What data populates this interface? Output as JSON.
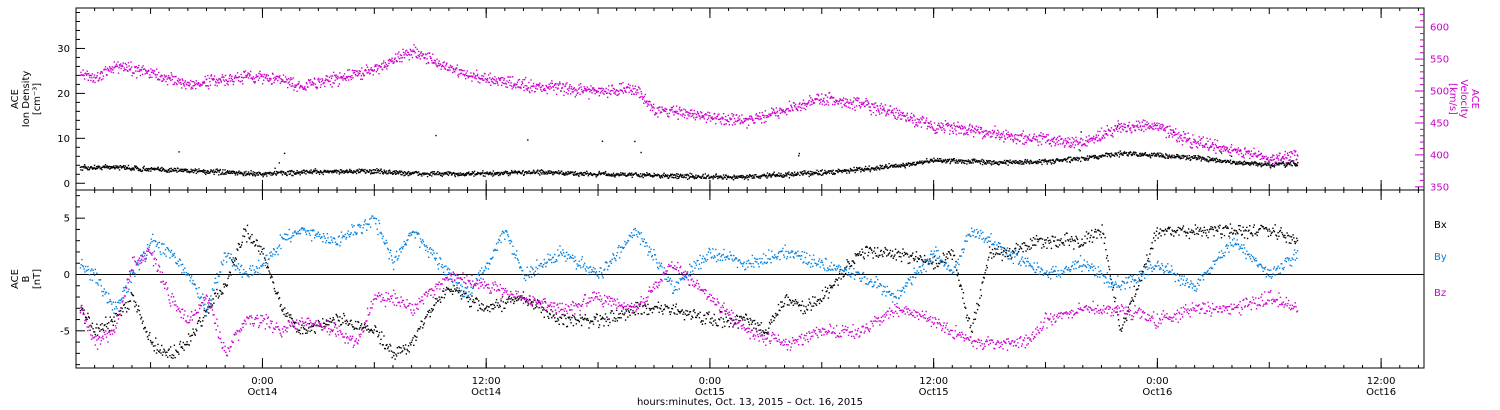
{
  "figure": {
    "x_caption": "hours:minutes, Oct. 13, 2015 – Oct. 16, 2015",
    "x_ticks": [
      {
        "hour": 24,
        "time": "0:00",
        "day": "Oct14"
      },
      {
        "hour": 36,
        "time": "12:00",
        "day": "Oct14"
      },
      {
        "hour": 48,
        "time": "0:00",
        "day": "Oct15"
      },
      {
        "hour": 60,
        "time": "12:00",
        "day": "Oct15"
      },
      {
        "hour": 72,
        "time": "0:00",
        "day": "Oct16"
      },
      {
        "hour": 84,
        "time": "12:00",
        "day": "Oct16"
      }
    ],
    "xlim_hours_from_oct13_0000": [
      14,
      86.3
    ]
  },
  "colors": {
    "black": "#000000",
    "magenta": "#cc00cc",
    "blue": "#0080e0"
  },
  "chart_data": [
    {
      "type": "scatter",
      "panel": "top",
      "ylabel_left": [
        "ACE",
        "Ion Density",
        "[cm⁻³]"
      ],
      "ylabel_right": [
        "ACE",
        "Velocity",
        "[km/s]"
      ],
      "ylim_left": [
        -1.5,
        39
      ],
      "ylim_right": [
        345,
        630
      ],
      "yticks_left": [
        0,
        10,
        20,
        30
      ],
      "yticks_right": [
        350,
        400,
        450,
        500,
        550,
        600
      ],
      "series": [
        {
          "color": "black",
          "axis": "left",
          "x": [
            14.2,
            16,
            18,
            20,
            22,
            24,
            26,
            28,
            30,
            32,
            34,
            36,
            38,
            40,
            42,
            44,
            46,
            48,
            50,
            52,
            54,
            56,
            58,
            60,
            62,
            64,
            66,
            68,
            70,
            72,
            74,
            76,
            78,
            79.5
          ],
          "y": [
            3.5,
            3.8,
            3.2,
            3.0,
            2.5,
            2.2,
            2.6,
            2.8,
            2.8,
            2.3,
            2.2,
            2.2,
            2.6,
            2.4,
            2.2,
            2.0,
            1.8,
            1.5,
            1.6,
            2.0,
            2.5,
            3.2,
            4.0,
            5.2,
            5.0,
            4.8,
            5.0,
            5.6,
            6.8,
            6.4,
            5.8,
            4.8,
            4.2,
            4.5
          ]
        },
        {
          "color": "magenta",
          "axis": "right",
          "x": [
            14.2,
            15,
            16,
            18,
            20,
            22,
            24,
            26,
            28,
            30,
            31,
            32,
            34,
            35,
            36,
            38,
            40,
            42,
            44,
            45,
            46,
            48,
            50,
            52,
            54,
            56,
            58,
            60,
            62,
            64,
            66,
            68,
            70,
            72,
            74,
            76,
            78,
            79.5
          ],
          "y": [
            530,
            520,
            540,
            530,
            510,
            520,
            525,
            510,
            520,
            535,
            550,
            565,
            535,
            525,
            520,
            510,
            505,
            500,
            505,
            470,
            470,
            460,
            455,
            470,
            490,
            480,
            465,
            445,
            440,
            430,
            425,
            420,
            445,
            445,
            420,
            410,
            395,
            400
          ]
        }
      ]
    },
    {
      "type": "scatter",
      "panel": "bottom",
      "ylabel_left": [
        "ACE",
        "B",
        "[nT]"
      ],
      "ylim": [
        -8.3,
        7.5
      ],
      "yticks": [
        -5,
        0,
        5
      ],
      "legend": [
        "Bx",
        "By",
        "Bz"
      ],
      "series": [
        {
          "name": "Bx",
          "color": "black",
          "x": [
            14.2,
            15,
            16,
            17,
            18,
            19,
            20,
            21,
            22,
            23,
            24,
            25,
            26,
            28,
            30,
            31,
            32,
            33,
            34,
            35,
            36,
            38,
            40,
            42,
            44,
            46,
            48,
            50,
            51,
            52,
            53,
            54,
            56,
            58,
            60,
            61,
            62,
            63,
            64,
            66,
            68,
            69,
            70,
            72,
            74,
            76,
            78,
            79.5
          ],
          "y": [
            -3,
            -5,
            -4,
            -2,
            -6,
            -7,
            -6,
            -3,
            -1,
            4,
            2,
            -3,
            -5,
            -4,
            -5,
            -7,
            -6,
            -3,
            -1,
            -2,
            -3,
            -2,
            -4,
            -4,
            -3,
            -3,
            -4,
            -4,
            -5,
            -2,
            -3,
            -2,
            2,
            2,
            1,
            2,
            -5,
            2,
            2,
            3,
            3,
            4,
            -5,
            4,
            4,
            4,
            4,
            3
          ]
        },
        {
          "name": "By",
          "color": "blue",
          "x": [
            14.2,
            15,
            16,
            17,
            18,
            19,
            20,
            21,
            22,
            23,
            24,
            25,
            26,
            28,
            29,
            30,
            31,
            32,
            34,
            35,
            36,
            37,
            38,
            40,
            42,
            44,
            46,
            48,
            50,
            52,
            54,
            56,
            58,
            60,
            61,
            62,
            64,
            66,
            68,
            70,
            72,
            74,
            76,
            78,
            79.5
          ],
          "y": [
            1,
            0,
            -3,
            0,
            3,
            2,
            0,
            -3,
            2,
            0,
            1,
            3,
            4,
            3,
            4,
            5,
            1,
            4,
            0,
            -2,
            1,
            4,
            0,
            2,
            0,
            4,
            -1,
            2,
            1,
            2,
            1,
            0,
            -2,
            2,
            0,
            4,
            2,
            0,
            1,
            -1,
            1,
            -1,
            3,
            0,
            2
          ]
        },
        {
          "name": "Bz",
          "color": "magenta",
          "x": [
            14.2,
            15,
            16,
            17,
            18,
            19,
            20,
            21,
            22,
            23,
            24,
            25,
            26,
            28,
            29,
            30,
            31,
            32,
            34,
            36,
            38,
            40,
            42,
            44,
            46,
            48,
            50,
            52,
            54,
            56,
            58,
            60,
            62,
            64,
            65,
            66,
            68,
            70,
            72,
            74,
            76,
            78,
            79.5
          ],
          "y": [
            -3,
            -6,
            -5,
            1,
            2,
            -2,
            -4,
            -2,
            -7,
            -4,
            -4,
            -5,
            -4,
            -5,
            -6,
            -2,
            -2,
            -3,
            0,
            -1,
            -2,
            -3,
            -2,
            -3,
            1,
            -2,
            -5,
            -6,
            -5,
            -5,
            -3,
            -4,
            -6,
            -6,
            -6,
            -4,
            -3,
            -3,
            -4,
            -3,
            -3,
            -2,
            -3
          ]
        }
      ]
    }
  ]
}
